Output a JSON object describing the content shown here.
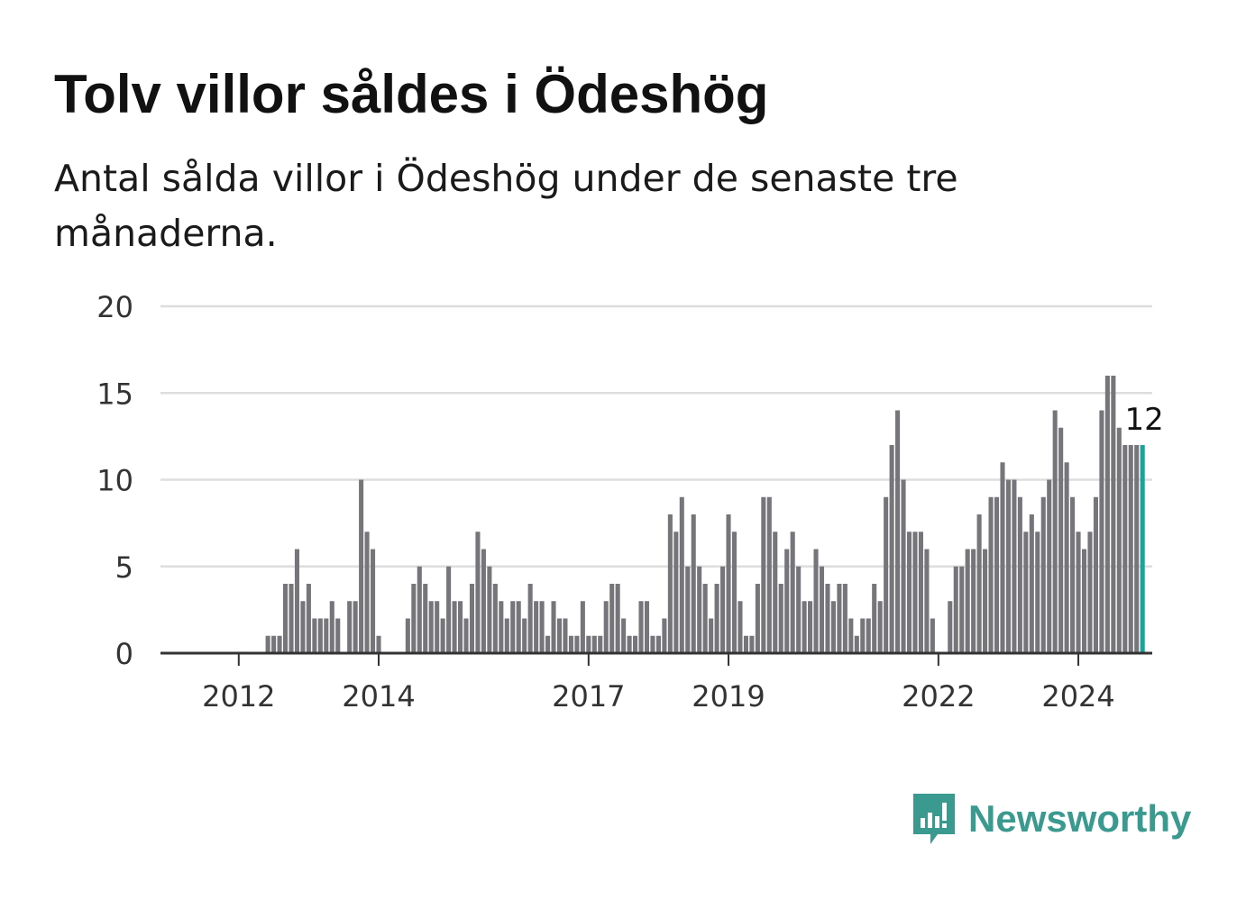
{
  "title": "Tolv villor såldes i Ödeshög",
  "subtitle": "Antal sålda villor i Ödeshög under de senaste tre månaderna.",
  "brand": {
    "name": "Newsworthy",
    "color": "#3a9a8f",
    "icon": "newsworthy-logo-icon"
  },
  "colors": {
    "bar": "#75757a",
    "highlight": "#1aa39b",
    "grid": "#dddddd",
    "axis": "#333333"
  },
  "chart_data": {
    "type": "bar",
    "xlabel": "",
    "ylabel": "",
    "ylim": [
      0,
      20
    ],
    "yticks": [
      "0",
      "5",
      "10",
      "15",
      "20"
    ],
    "xticks": [
      "2012",
      "2014",
      "2017",
      "2019",
      "2022",
      "2024"
    ],
    "x_start": "2011-07",
    "x_end": "2024-09",
    "grid": true,
    "highlight_last": true,
    "last_label": "12",
    "values": [
      0,
      0,
      0,
      0,
      0,
      0,
      0,
      0,
      0,
      0,
      0,
      1,
      1,
      1,
      4,
      4,
      6,
      3,
      4,
      2,
      2,
      2,
      3,
      2,
      0,
      3,
      3,
      10,
      7,
      6,
      1,
      0,
      0,
      0,
      0,
      2,
      4,
      5,
      4,
      3,
      3,
      2,
      5,
      3,
      3,
      2,
      4,
      7,
      6,
      5,
      4,
      3,
      2,
      3,
      3,
      2,
      4,
      3,
      3,
      1,
      3,
      2,
      2,
      1,
      1,
      3,
      1,
      1,
      1,
      3,
      4,
      4,
      2,
      1,
      1,
      3,
      3,
      1,
      1,
      2,
      8,
      7,
      9,
      5,
      8,
      5,
      4,
      2,
      4,
      5,
      8,
      7,
      3,
      1,
      1,
      4,
      9,
      9,
      7,
      4,
      6,
      7,
      5,
      3,
      3,
      6,
      5,
      4,
      3,
      4,
      4,
      2,
      1,
      2,
      2,
      4,
      3,
      9,
      12,
      14,
      10,
      7,
      7,
      7,
      6,
      2,
      0,
      0,
      3,
      5,
      5,
      6,
      6,
      8,
      6,
      9,
      9,
      11,
      10,
      10,
      9,
      7,
      8,
      7,
      9,
      10,
      14,
      13,
      11,
      9,
      7,
      6,
      7,
      9,
      14,
      16,
      16,
      13,
      12,
      12,
      12,
      12
    ]
  }
}
